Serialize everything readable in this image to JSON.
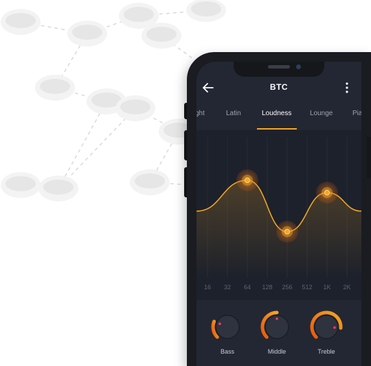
{
  "header": {
    "title": "BTC"
  },
  "icons": {
    "back": "arrow-left-icon",
    "more": "more-vertical-icon"
  },
  "tabs": [
    {
      "label": "ght",
      "active": false
    },
    {
      "label": "Latin",
      "active": false
    },
    {
      "label": "Loudness",
      "active": true
    },
    {
      "label": "Lounge",
      "active": false
    },
    {
      "label": "Pia",
      "active": false
    }
  ],
  "equalizer": {
    "frequencies": [
      "16",
      "32",
      "64",
      "128",
      "256",
      "512",
      "1K",
      "2K"
    ],
    "points": [
      {
        "band": "64",
        "level": 0.78
      },
      {
        "band": "256",
        "level": 0.28
      },
      {
        "band": "1K",
        "level": 0.66
      }
    ]
  },
  "knobs": [
    {
      "label": "Bass",
      "value": 0.25
    },
    {
      "label": "Middle",
      "value": 0.5
    },
    {
      "label": "Treble",
      "value": 0.85
    }
  ],
  "colors": {
    "accent": "#f6a623",
    "accent_dark": "#e8590c",
    "screen_bg": "#232733",
    "phone_frame": "#1a1c22"
  }
}
